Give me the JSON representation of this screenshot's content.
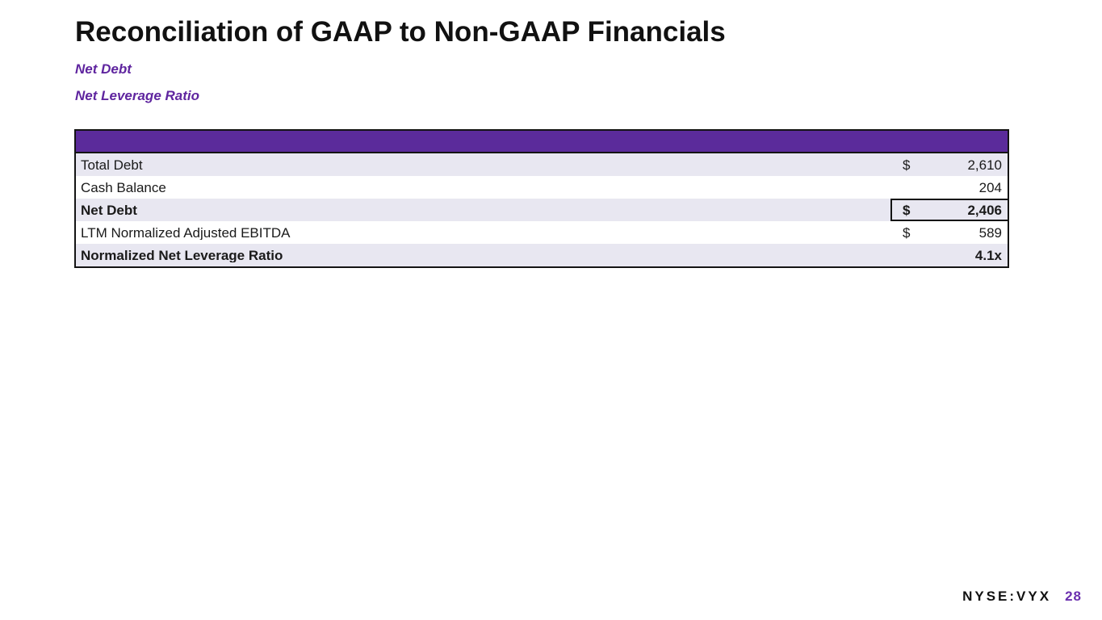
{
  "slide": {
    "title": "Reconciliation of GAAP to Non-GAAP Financials",
    "subtitles": [
      "Net Debt",
      "Net Leverage Ratio"
    ],
    "footer": {
      "ticker": "NYSE:VYX",
      "page_number": "28"
    }
  },
  "table": {
    "header_label": "",
    "rows": [
      {
        "label": "Total Debt",
        "currency": "$",
        "value": "2,610",
        "bold": false,
        "shaded": true,
        "boxed": false
      },
      {
        "label": "Cash Balance",
        "currency": "",
        "value": "204",
        "bold": false,
        "shaded": false,
        "boxed": false
      },
      {
        "label": "Net Debt",
        "currency": "$",
        "value": "2,406",
        "bold": true,
        "shaded": true,
        "boxed": true
      },
      {
        "label": "LTM Normalized Adjusted EBITDA",
        "currency": "$",
        "value": "589",
        "bold": false,
        "shaded": false,
        "boxed": false
      },
      {
        "label": "Normalized Net Leverage Ratio",
        "currency": "",
        "value": "4.1x",
        "bold": true,
        "shaded": true,
        "boxed": false
      }
    ]
  },
  "colors": {
    "accent_purple": "#5F259F",
    "table_header_purple": "#5B2B9B",
    "row_shade_lavender": "#E8E7F1",
    "border_black": "#141414",
    "page_number_purple": "#6B2FAF",
    "title_black": "#111111"
  }
}
